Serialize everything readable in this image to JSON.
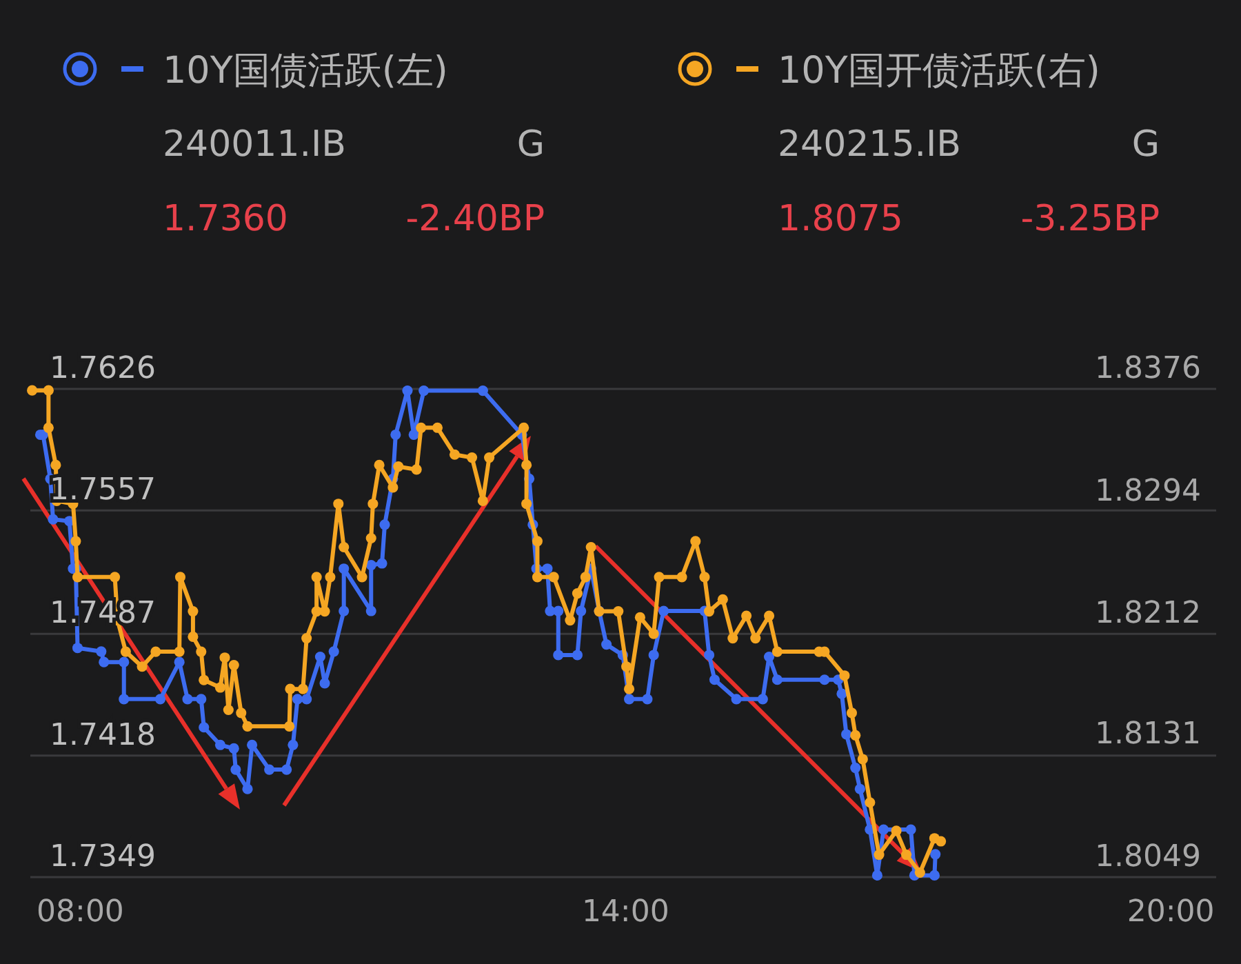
{
  "chart_data": {
    "type": "line",
    "legend": "top",
    "grid": "y",
    "marker": "circle",
    "line_style": "solid",
    "annotations": [
      "240011.IB",
      "G",
      "1.7360",
      "-2.40BP",
      "240215.IB",
      "G",
      "1.8075",
      "-3.25BP"
    ],
    "xlim": [
      7.45,
      20.5
    ],
    "xticks": [
      {
        "value": 8,
        "label": "08:00"
      },
      {
        "value": 14,
        "label": "14:00"
      },
      {
        "value": 20,
        "label": "20:00"
      }
    ],
    "ylim": [
      1.7349,
      1.7626
    ],
    "yticks": [
      1.7349,
      1.7418,
      1.7487,
      1.7557,
      1.7626
    ],
    "y2lim": [
      1.8049,
      1.8376
    ],
    "y2ticks": [
      1.8049,
      1.8131,
      1.8212,
      1.8294,
      1.8376
    ],
    "series": [
      {
        "name": "10Y国债活跃(左)",
        "color": "#3d6cf0",
        "x": [
          7.56,
          7.59,
          7.67,
          7.7,
          7.88,
          7.92,
          7.95,
          7.97,
          8.23,
          8.26,
          8.48,
          8.48,
          8.88,
          9.09,
          9.18,
          9.33,
          9.36,
          9.54,
          9.69,
          9.71,
          9.84,
          9.89,
          10.08,
          10.27,
          10.34,
          10.39,
          10.49,
          10.64,
          10.69,
          10.79,
          10.9,
          10.9,
          11.2,
          11.2,
          11.32,
          11.35,
          11.44,
          11.47,
          11.6,
          11.67,
          11.78,
          12.43,
          12.86,
          12.94,
          12.98,
          13.02,
          13.14,
          13.17,
          13.26,
          13.26,
          13.47,
          13.51,
          13.62,
          13.71,
          13.79,
          13.97,
          14.04,
          14.24,
          14.31,
          14.42,
          14.87,
          14.92,
          14.98,
          15.22,
          15.51,
          15.58,
          15.67,
          16.19,
          16.34,
          16.38,
          16.43,
          16.53,
          16.58,
          16.69,
          16.77,
          16.84,
          17.14,
          17.18,
          17.4,
          17.41
        ],
        "values": [
          1.76,
          1.76,
          1.7575,
          1.7552,
          1.7551,
          1.7524,
          1.7524,
          1.7479,
          1.7477,
          1.7471,
          1.7471,
          1.745,
          1.745,
          1.7471,
          1.745,
          1.745,
          1.7434,
          1.7424,
          1.7422,
          1.741,
          1.7399,
          1.7424,
          1.741,
          1.741,
          1.7424,
          1.745,
          1.745,
          1.7474,
          1.7459,
          1.7477,
          1.75,
          1.7524,
          1.75,
          1.7526,
          1.7527,
          1.7549,
          1.7575,
          1.76,
          1.7625,
          1.76,
          1.7625,
          1.7625,
          1.76,
          1.7575,
          1.7549,
          1.7524,
          1.7524,
          1.75,
          1.75,
          1.7475,
          1.7475,
          1.75,
          1.7524,
          1.75,
          1.7481,
          1.7475,
          1.745,
          1.745,
          1.7475,
          1.75,
          1.75,
          1.7475,
          1.7461,
          1.745,
          1.745,
          1.7474,
          1.7461,
          1.7461,
          1.7461,
          1.7453,
          1.743,
          1.7411,
          1.7399,
          1.7376,
          1.735,
          1.7376,
          1.7376,
          1.735,
          1.735,
          1.7362
        ]
      },
      {
        "name": "10Y国开债活跃(右)",
        "color": "#f5a623",
        "axis": "y2",
        "x": [
          7.47,
          7.65,
          7.65,
          7.73,
          7.74,
          7.92,
          7.95,
          7.97,
          8.38,
          8.41,
          8.5,
          8.68,
          8.83,
          9.09,
          9.1,
          9.24,
          9.24,
          9.33,
          9.36,
          9.54,
          9.59,
          9.63,
          9.69,
          9.77,
          9.84,
          10.3,
          10.31,
          10.45,
          10.49,
          10.6,
          10.6,
          10.69,
          10.75,
          10.84,
          10.9,
          11.1,
          11.2,
          11.22,
          11.29,
          11.44,
          11.5,
          11.7,
          11.75,
          11.93,
          12.12,
          12.31,
          12.43,
          12.5,
          12.88,
          12.91,
          12.91,
          13.03,
          13.03,
          13.21,
          13.39,
          13.47,
          13.56,
          13.62,
          13.71,
          13.92,
          14.01,
          14.04,
          14.16,
          14.31,
          14.37,
          14.62,
          14.77,
          14.87,
          14.92,
          15.07,
          15.18,
          15.33,
          15.43,
          15.58,
          15.67,
          16.13,
          16.19,
          16.41,
          16.49,
          16.53,
          16.61,
          16.69,
          16.79,
          16.98,
          17.09,
          17.24,
          17.4,
          17.47
        ],
        "values": [
          1.8375,
          1.8375,
          1.835,
          1.8325,
          1.8301,
          1.8299,
          1.8274,
          1.825,
          1.825,
          1.8221,
          1.82,
          1.819,
          1.82,
          1.82,
          1.825,
          1.8227,
          1.821,
          1.82,
          1.8181,
          1.8176,
          1.8196,
          1.8161,
          1.8191,
          1.8159,
          1.815,
          1.815,
          1.8175,
          1.8175,
          1.8209,
          1.8227,
          1.825,
          1.8227,
          1.825,
          1.8299,
          1.827,
          1.825,
          1.8276,
          1.8299,
          1.8325,
          1.831,
          1.8324,
          1.8322,
          1.835,
          1.835,
          1.8332,
          1.833,
          1.8301,
          1.833,
          1.835,
          1.8325,
          1.8299,
          1.8274,
          1.825,
          1.825,
          1.8221,
          1.8239,
          1.825,
          1.827,
          1.8227,
          1.8227,
          1.819,
          1.8175,
          1.8223,
          1.8212,
          1.825,
          1.825,
          1.8274,
          1.825,
          1.8227,
          1.8235,
          1.8209,
          1.8224,
          1.8209,
          1.8224,
          1.82,
          1.82,
          1.82,
          1.8184,
          1.8159,
          1.8144,
          1.8128,
          1.8099,
          1.8064,
          1.808,
          1.8064,
          1.8052,
          1.8075,
          1.8073
        ]
      }
    ]
  }
}
